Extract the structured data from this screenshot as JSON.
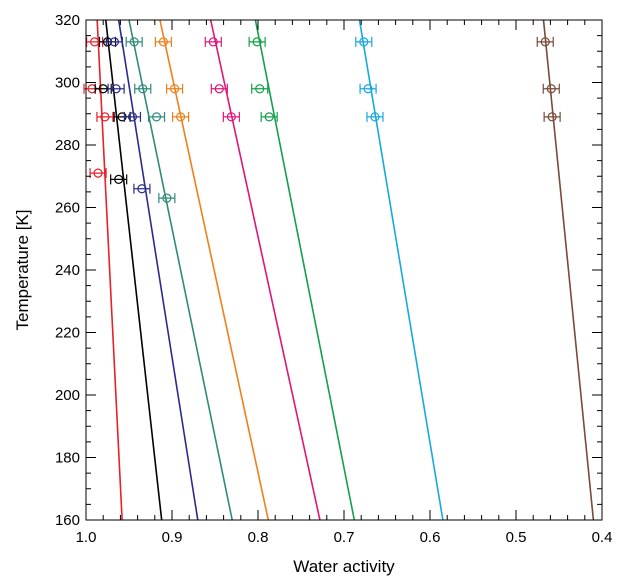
{
  "chart_data": {
    "type": "scatter",
    "xlabel": "Water activity",
    "ylabel": "Temperature [K]",
    "xlim": [
      1.0,
      0.4
    ],
    "ylim": [
      160,
      320
    ],
    "x_reversed": true,
    "xticks": [
      "1.0",
      "0.9",
      "0.8",
      "0.7",
      "0.6",
      "0.5",
      "0.4"
    ],
    "yticks": [
      "160",
      "180",
      "200",
      "220",
      "240",
      "260",
      "280",
      "300",
      "320"
    ],
    "grid": false,
    "lines": [
      {
        "color": "#e8202a",
        "points": [
          [
            0.958,
            160
          ],
          [
            0.987,
            320
          ]
        ]
      },
      {
        "color": "#000000",
        "points": [
          [
            0.912,
            160
          ],
          [
            0.977,
            320
          ]
        ]
      },
      {
        "color": "#2b2b8f",
        "points": [
          [
            0.87,
            160
          ],
          [
            0.962,
            320
          ]
        ]
      },
      {
        "color": "#2e8b7a",
        "points": [
          [
            0.83,
            160
          ],
          [
            0.95,
            320
          ]
        ]
      },
      {
        "color": "#f07f1a",
        "points": [
          [
            0.788,
            160
          ],
          [
            0.914,
            320
          ]
        ]
      },
      {
        "color": "#e0157a",
        "points": [
          [
            0.728,
            160
          ],
          [
            0.855,
            320
          ]
        ]
      },
      {
        "color": "#13a04a",
        "points": [
          [
            0.688,
            160
          ],
          [
            0.803,
            320
          ]
        ]
      },
      {
        "color": "#17a8e0",
        "points": [
          [
            0.585,
            160
          ],
          [
            0.682,
            320
          ]
        ]
      },
      {
        "color": "#7a4a3a",
        "points": [
          [
            0.41,
            160
          ],
          [
            0.468,
            320
          ]
        ]
      }
    ],
    "series": [
      {
        "color": "#e8202a",
        "points": [
          [
            0.99,
            313
          ],
          [
            0.993,
            298
          ],
          [
            0.978,
            289
          ],
          [
            0.986,
            271
          ]
        ]
      },
      {
        "color": "#000000",
        "points": [
          [
            0.975,
            313
          ],
          [
            0.98,
            298
          ],
          [
            0.958,
            289
          ],
          [
            0.962,
            269
          ]
        ]
      },
      {
        "color": "#2b2b8f",
        "points": [
          [
            0.967,
            313
          ],
          [
            0.965,
            298
          ],
          [
            0.946,
            289
          ],
          [
            0.935,
            266
          ]
        ]
      },
      {
        "color": "#2e8b7a",
        "points": [
          [
            0.944,
            313
          ],
          [
            0.934,
            298
          ],
          [
            0.918,
            289
          ],
          [
            0.906,
            263
          ]
        ]
      },
      {
        "color": "#f07f1a",
        "points": [
          [
            0.91,
            313
          ],
          [
            0.897,
            298
          ],
          [
            0.89,
            289
          ]
        ]
      },
      {
        "color": "#e0157a",
        "points": [
          [
            0.852,
            313
          ],
          [
            0.845,
            298
          ],
          [
            0.831,
            289
          ]
        ]
      },
      {
        "color": "#13a04a",
        "points": [
          [
            0.801,
            313
          ],
          [
            0.798,
            298
          ],
          [
            0.787,
            289
          ]
        ]
      },
      {
        "color": "#17a8e0",
        "points": [
          [
            0.677,
            313
          ],
          [
            0.672,
            298
          ],
          [
            0.664,
            289
          ]
        ]
      },
      {
        "color": "#7a4a3a",
        "points": [
          [
            0.466,
            313
          ],
          [
            0.459,
            298
          ],
          [
            0.458,
            289
          ]
        ]
      }
    ]
  }
}
